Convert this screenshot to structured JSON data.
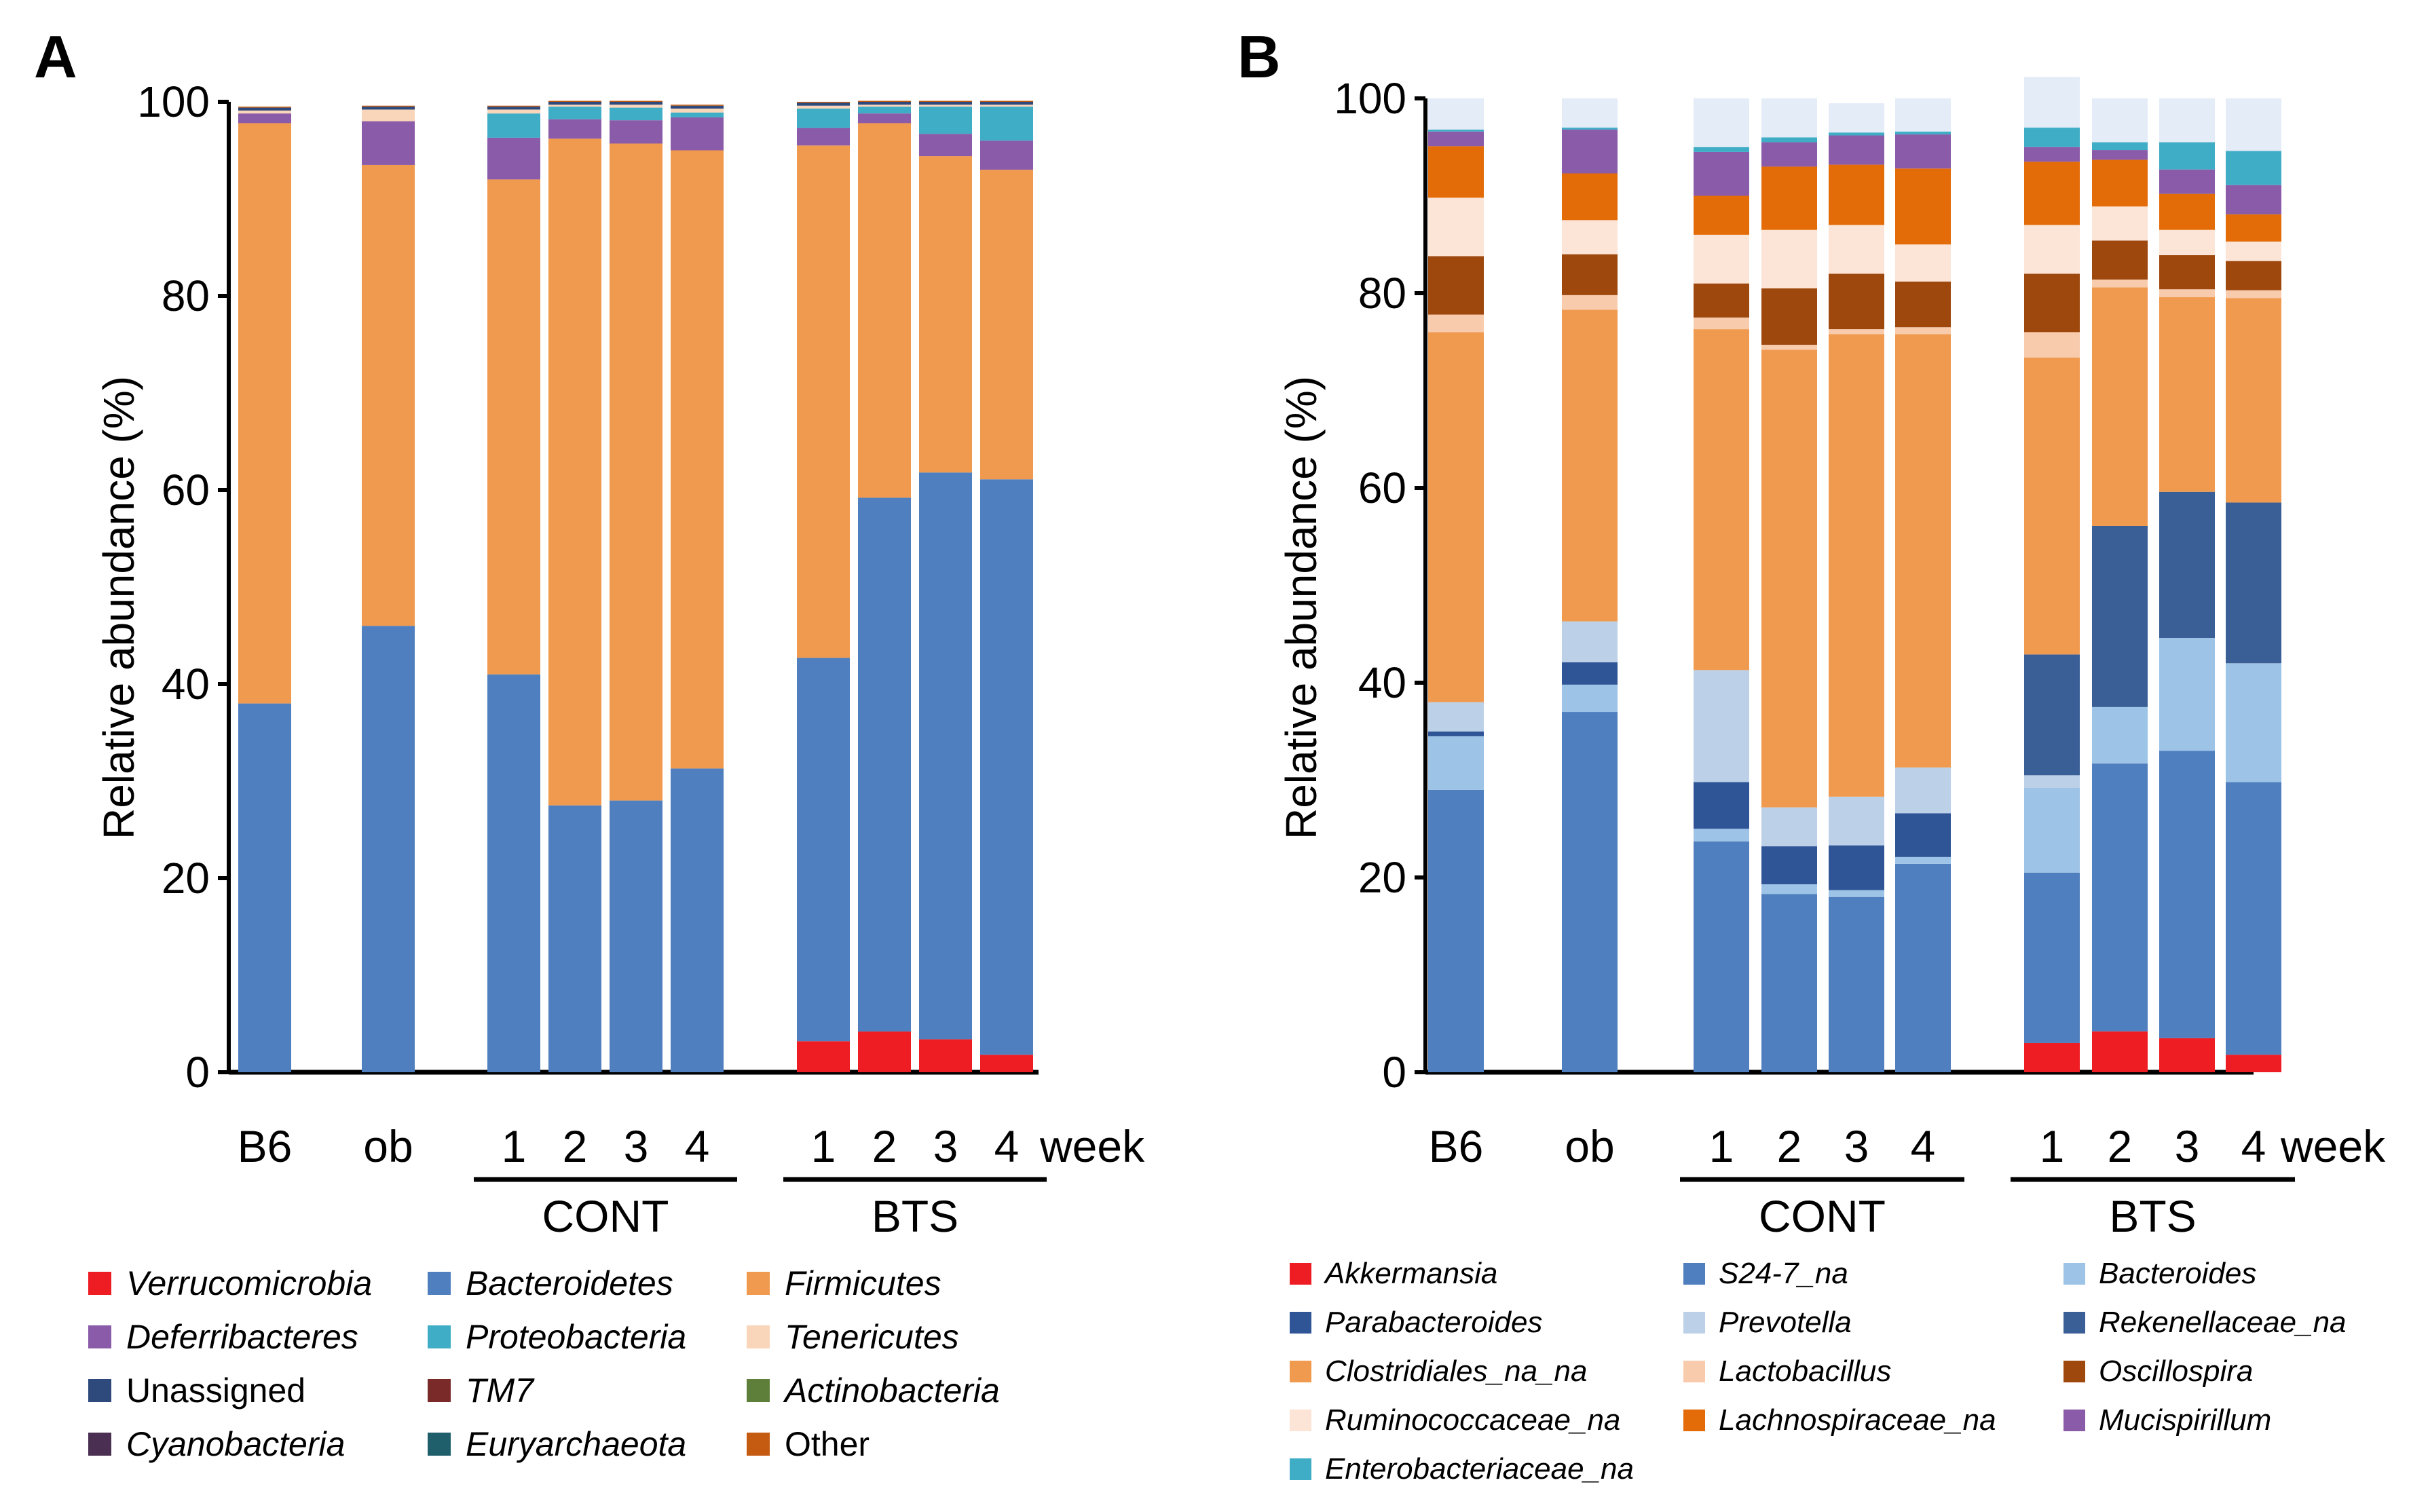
{
  "chart_data": [
    {
      "panel": "A",
      "type": "bar",
      "stacked": true,
      "ylabel": "Relative abundance (%)",
      "ylim": [
        0,
        100
      ],
      "yticks": [
        0,
        20,
        40,
        60,
        80,
        100
      ],
      "x_unit_label": "week",
      "categories": [
        {
          "label": "B6",
          "group": null
        },
        {
          "label": "ob",
          "group": null
        },
        {
          "label": "1",
          "group": "CONT"
        },
        {
          "label": "2",
          "group": "CONT"
        },
        {
          "label": "3",
          "group": "CONT"
        },
        {
          "label": "4",
          "group": "CONT"
        },
        {
          "label": "1",
          "group": "BTS"
        },
        {
          "label": "2",
          "group": "BTS"
        },
        {
          "label": "3",
          "group": "BTS"
        },
        {
          "label": "4",
          "group": "BTS"
        }
      ],
      "groups": [
        "CONT",
        "BTS"
      ],
      "series": [
        {
          "name": "Verrucomicrobia",
          "italic": true,
          "color": "#ee1c23",
          "values": [
            0,
            0,
            0,
            0,
            0,
            0,
            3.2,
            4.2,
            3.4,
            1.8
          ]
        },
        {
          "name": "Bacteroidetes",
          "italic": true,
          "color": "#4f7fbf",
          "values": [
            38,
            46,
            41,
            27.5,
            28,
            31.3,
            39.5,
            55,
            58.4,
            59.3
          ]
        },
        {
          "name": "Firmicutes",
          "italic": true,
          "color": "#f09a4f",
          "values": [
            59.8,
            47.5,
            51,
            68.7,
            67.7,
            63.7,
            52.8,
            38.6,
            32.6,
            31.9
          ]
        },
        {
          "name": "Deferribacteres",
          "italic": true,
          "color": "#8a5ba8",
          "values": [
            1,
            4.5,
            4.3,
            2,
            2.4,
            3.4,
            1.8,
            1,
            2.3,
            3
          ]
        },
        {
          "name": "Proteobacteria",
          "italic": true,
          "color": "#3fadc6",
          "values": [
            0,
            0,
            2.5,
            1.3,
            1.3,
            0.5,
            2,
            0.7,
            2.8,
            3.5
          ]
        },
        {
          "name": "Tenericutes",
          "italic": true,
          "color": "#f9d5b9",
          "values": [
            0.3,
            1.2,
            0.4,
            0.2,
            0.3,
            0.4,
            0.3,
            0.2,
            0.2,
            0.2
          ]
        },
        {
          "name": "Unassigned",
          "italic": false,
          "color": "#2e4a7d",
          "values": [
            0.3,
            0.3,
            0.3,
            0.3,
            0.3,
            0.3,
            0.3,
            0.3,
            0.3,
            0.3
          ]
        },
        {
          "name": "TM7",
          "italic": true,
          "color": "#7b2a2a",
          "values": [
            0,
            0,
            0,
            0,
            0,
            0,
            0,
            0,
            0,
            0
          ]
        },
        {
          "name": "Actinobacteria",
          "italic": true,
          "color": "#5d7f3a",
          "values": [
            0,
            0,
            0,
            0,
            0,
            0,
            0,
            0,
            0,
            0
          ]
        },
        {
          "name": "Cyanobacteria",
          "italic": true,
          "color": "#4a2f52",
          "values": [
            0,
            0,
            0,
            0,
            0,
            0,
            0,
            0,
            0,
            0
          ]
        },
        {
          "name": "Euryarchaeota",
          "italic": true,
          "color": "#1f5f6c",
          "values": [
            0,
            0,
            0,
            0,
            0,
            0,
            0,
            0,
            0,
            0
          ]
        },
        {
          "name": "Other",
          "italic": false,
          "color": "#c55a11",
          "values": [
            0.1,
            0.1,
            0.1,
            0.1,
            0.1,
            0.1,
            0.1,
            0.1,
            0.1,
            0.1
          ]
        }
      ]
    },
    {
      "panel": "B",
      "type": "bar",
      "stacked": true,
      "ylabel": "Relative abundance (%)",
      "ylim": [
        0,
        100
      ],
      "yticks": [
        0,
        20,
        40,
        60,
        80,
        100
      ],
      "x_unit_label": "week",
      "categories": [
        {
          "label": "B6",
          "group": null
        },
        {
          "label": "ob",
          "group": null
        },
        {
          "label": "1",
          "group": "CONT"
        },
        {
          "label": "2",
          "group": "CONT"
        },
        {
          "label": "3",
          "group": "CONT"
        },
        {
          "label": "4",
          "group": "CONT"
        },
        {
          "label": "1",
          "group": "BTS"
        },
        {
          "label": "2",
          "group": "BTS"
        },
        {
          "label": "3",
          "group": "BTS"
        },
        {
          "label": "4",
          "group": "BTS"
        }
      ],
      "groups": [
        "CONT",
        "BTS"
      ],
      "series": [
        {
          "name": "Akkermansia",
          "color": "#ee1c23",
          "values": [
            0,
            0,
            0,
            0,
            0,
            0,
            3,
            4.2,
            3.5,
            1.8
          ]
        },
        {
          "name": "S24-7_na",
          "color": "#4f7fbf",
          "values": [
            29,
            37,
            23.7,
            18.3,
            18,
            21.4,
            17.5,
            27.5,
            29.5,
            28
          ]
        },
        {
          "name": "Bacteroides",
          "color": "#9dc3e6",
          "values": [
            5.5,
            2.8,
            1.3,
            1,
            0.7,
            0.7,
            8.7,
            5.8,
            11.6,
            12.2
          ]
        },
        {
          "name": "Parabacteroides",
          "color": "#2f5597",
          "values": [
            0.5,
            2.3,
            4.8,
            3.9,
            4.6,
            4.5,
            0,
            0,
            0,
            0
          ]
        },
        {
          "name": "Prevotella",
          "color": "#bcd0e8",
          "values": [
            3,
            4.2,
            11.5,
            4,
            5,
            4.7,
            1.3,
            0,
            0,
            0
          ]
        },
        {
          "name": "Rekenellaceae_na",
          "color": "#3a5f96",
          "values": [
            0,
            0,
            0,
            0,
            0,
            0,
            12.4,
            18.6,
            15,
            16.5
          ]
        },
        {
          "name": "Clostridiales_na_na",
          "color": "#f09a4f",
          "values": [
            38,
            32,
            35,
            47,
            47.5,
            44.5,
            30.5,
            24.5,
            20,
            21
          ]
        },
        {
          "name": "Lactobacillus",
          "color": "#f8cbad",
          "values": [
            1.8,
            1.5,
            1.2,
            0.5,
            0.5,
            0.7,
            2.6,
            0.8,
            0.8,
            0.8
          ]
        },
        {
          "name": "Oscillospira",
          "color": "#9e480e",
          "values": [
            6,
            4.2,
            3.5,
            5.8,
            5.7,
            4.7,
            6,
            4,
            3.5,
            3
          ]
        },
        {
          "name": "Ruminococcaceae_na",
          "color": "#fce4d6",
          "values": [
            6,
            3.5,
            5,
            6,
            5,
            3.8,
            5,
            3.5,
            2.6,
            2
          ]
        },
        {
          "name": "Lachnospiraceae_na",
          "color": "#e36c09",
          "values": [
            5.3,
            4.8,
            4,
            6.5,
            6.2,
            7.8,
            6.5,
            4.8,
            3.7,
            2.8
          ]
        },
        {
          "name": "Mucispirillum",
          "color": "#8a5ba8",
          "values": [
            1.5,
            4.5,
            4.5,
            2.5,
            3,
            3.5,
            1.5,
            1,
            2.5,
            3
          ]
        },
        {
          "name": "Enterobacteriaceae_na",
          "color": "#3fadc6",
          "values": [
            0.2,
            0.2,
            0.5,
            0.5,
            0.3,
            0.3,
            2,
            0.8,
            2.8,
            3.5
          ]
        },
        {
          "name": "Other",
          "color": "#e4ecf7",
          "values": [
            3.2,
            3,
            5,
            4,
            3,
            3.4,
            5.2,
            4.5,
            4.5,
            5.4
          ]
        }
      ]
    }
  ],
  "legendA": [
    {
      "label": "Verrucomicrobia",
      "italic": true,
      "color": "#ee1c23"
    },
    {
      "label": "Bacteroidetes",
      "italic": true,
      "color": "#4f7fbf"
    },
    {
      "label": "Firmicutes",
      "italic": true,
      "color": "#f09a4f"
    },
    {
      "label": "Deferribacteres",
      "italic": true,
      "color": "#8a5ba8"
    },
    {
      "label": "Proteobacteria",
      "italic": true,
      "color": "#3fadc6"
    },
    {
      "label": "Tenericutes",
      "italic": true,
      "color": "#f9d5b9"
    },
    {
      "label": "Unassigned",
      "italic": false,
      "color": "#2e4a7d"
    },
    {
      "label": "TM7",
      "italic": true,
      "color": "#7b2a2a"
    },
    {
      "label": "Actinobacteria",
      "italic": true,
      "color": "#5d7f3a"
    },
    {
      "label": "Cyanobacteria",
      "italic": true,
      "color": "#4a2f52"
    },
    {
      "label": "Euryarchaeota",
      "italic": true,
      "color": "#1f5f6c"
    },
    {
      "label": "Other",
      "italic": false,
      "color": "#c55a11"
    }
  ],
  "legendB": [
    {
      "label": "Akkermansia",
      "italic": true,
      "color": "#ee1c23"
    },
    {
      "label": "S24-7_na",
      "italic": true,
      "color": "#4f7fbf"
    },
    {
      "label": "Bacteroides",
      "italic": true,
      "color": "#9dc3e6"
    },
    {
      "label": "Parabacteroides",
      "italic": true,
      "color": "#2f5597"
    },
    {
      "label": "Prevotella",
      "italic": true,
      "color": "#bcd0e8"
    },
    {
      "label": "Rekenellaceae_na",
      "italic": true,
      "color": "#3a5f96"
    },
    {
      "label": "Clostridiales_na_na",
      "italic": true,
      "color": "#f09a4f"
    },
    {
      "label": "Lactobacillus",
      "italic": true,
      "color": "#f8cbad"
    },
    {
      "label": "Oscillospira",
      "italic": true,
      "color": "#9e480e"
    },
    {
      "label": "Ruminococcaceae_na",
      "italic": true,
      "color": "#fce4d6"
    },
    {
      "label": "Lachnospiraceae_na",
      "italic": true,
      "color": "#e36c09"
    },
    {
      "label": "Mucispirillum",
      "italic": true,
      "color": "#8a5ba8"
    },
    {
      "label": "Enterobacteriaceae_na",
      "italic": true,
      "color": "#3fadc6"
    }
  ],
  "labels": {
    "panelA": "A",
    "panelB": "B"
  }
}
